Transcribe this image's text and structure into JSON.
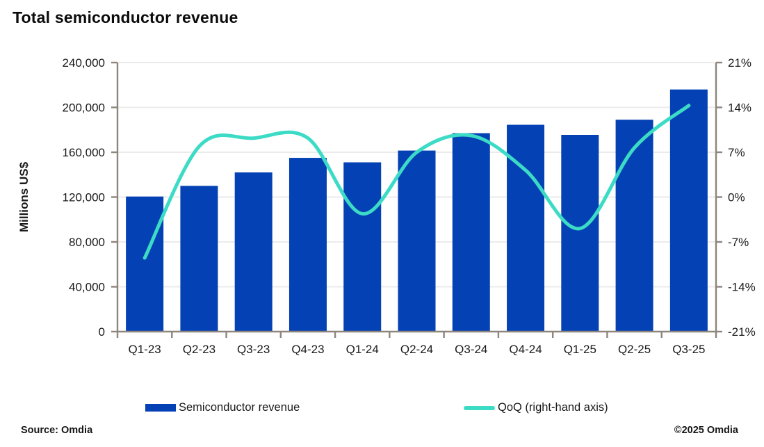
{
  "title": "Total semiconductor revenue",
  "footer": {
    "source": "Source: Omdia",
    "copyright": "©2025 Omdia"
  },
  "colors": {
    "bar": "#0341b4",
    "line": "#3cdbc6",
    "axis": "#8e857c",
    "grid": "#ebebeb",
    "text": "#1a1a1a"
  },
  "chart_data": {
    "type": "combo-bar-line",
    "title": "Total semiconductor revenue",
    "categories": [
      "Q1-23",
      "Q2-23",
      "Q3-23",
      "Q4-23",
      "Q1-24",
      "Q2-24",
      "Q3-24",
      "Q4-24",
      "Q1-25",
      "Q2-25",
      "Q3-25"
    ],
    "series": [
      {
        "name": "Semiconductor revenue",
        "type": "bar",
        "axis": "left",
        "color": "#0341b4",
        "values": [
          120500,
          130000,
          142000,
          155000,
          151000,
          161500,
          177000,
          184500,
          175500,
          189000,
          216000
        ]
      },
      {
        "name": "QoQ (right-hand axis)",
        "type": "line",
        "axis": "right",
        "color": "#3cdbc6",
        "values": [
          -9.5,
          7.9,
          9.2,
          9.2,
          -2.6,
          7.0,
          9.6,
          4.2,
          -4.9,
          7.7,
          14.3
        ]
      }
    ],
    "axes": {
      "left": {
        "label": "Millions US$",
        "min": 0,
        "max": 240000,
        "tick_values": [
          0,
          40000,
          80000,
          120000,
          160000,
          200000,
          240000
        ],
        "tick_labels": [
          "0",
          "40,000",
          "80,000",
          "120,000",
          "160,000",
          "200,000",
          "240,000"
        ]
      },
      "right": {
        "label": "",
        "min": -21,
        "max": 21,
        "tick_values": [
          -21,
          -14,
          -7,
          0,
          7,
          14,
          21
        ],
        "tick_labels": [
          "-21%",
          "-14%",
          "-7%",
          "0%",
          "7%",
          "14%",
          "21%"
        ]
      }
    },
    "grid": true,
    "legend_position": "bottom"
  }
}
